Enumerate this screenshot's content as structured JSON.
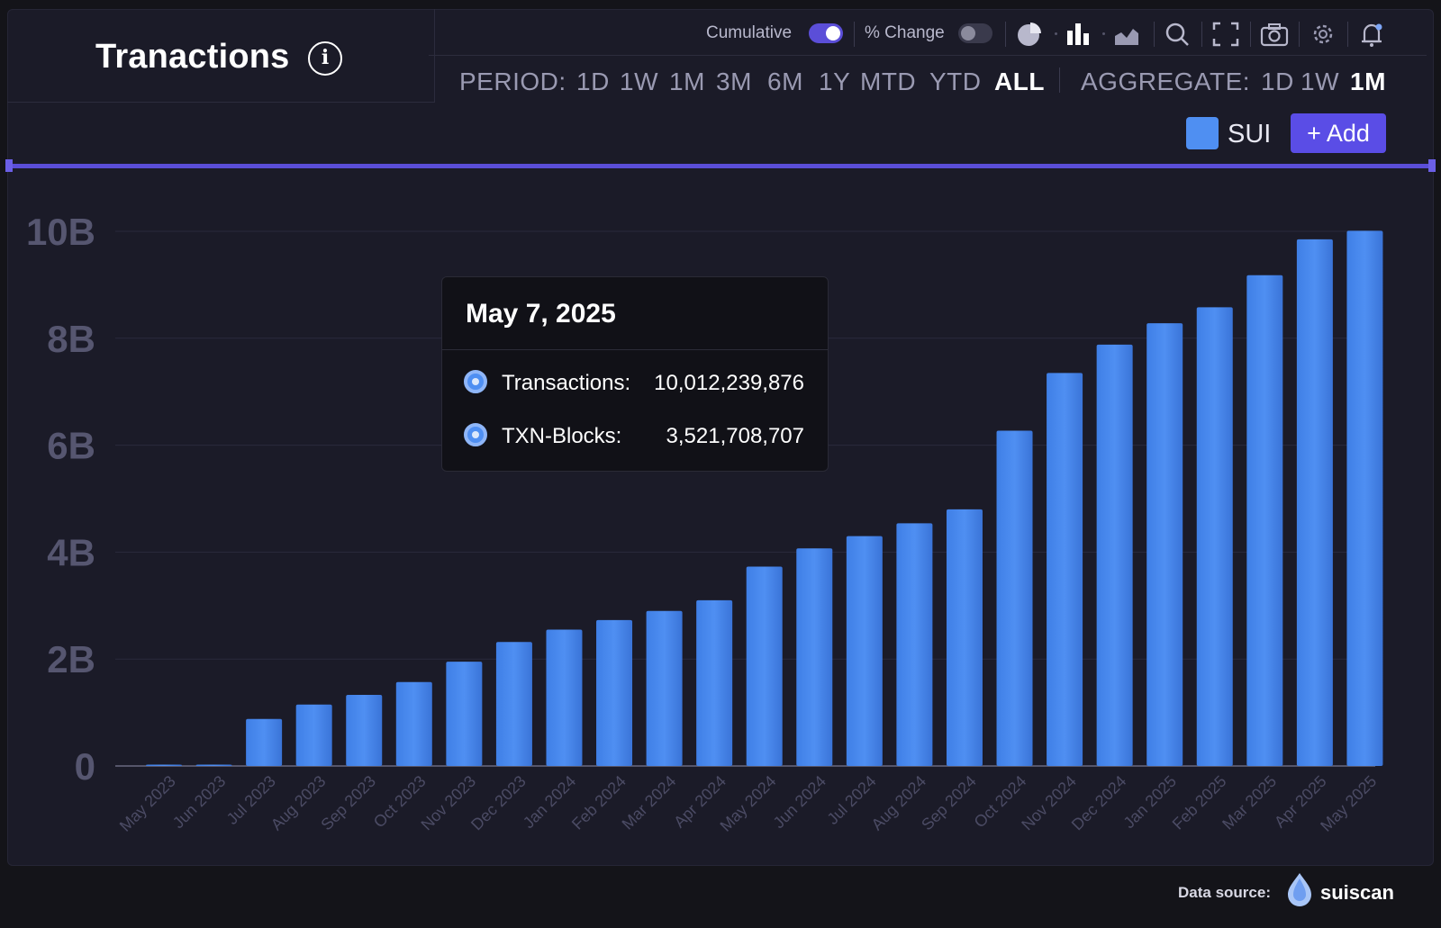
{
  "header": {
    "title": "Tranactions",
    "info_icon": "info-icon"
  },
  "toolbar": {
    "cumulative_label": "Cumulative",
    "cumulative_on": true,
    "pct_change_label": "% Change",
    "pct_change_on": false,
    "icons": [
      "pie-chart-icon",
      "bar-chart-icon",
      "area-chart-icon",
      "search-icon",
      "fullscreen-icon",
      "camera-icon",
      "gear-icon",
      "bell-icon"
    ]
  },
  "period": {
    "label": "PERIOD:",
    "options": [
      "1D",
      "1W",
      "1M",
      "3M",
      "6M",
      "1Y",
      "MTD",
      "YTD",
      "ALL"
    ],
    "selected": "ALL"
  },
  "aggregate": {
    "label": "AGGREGATE:",
    "options": [
      "1D",
      "1W",
      "1M"
    ],
    "selected": "1M"
  },
  "legend": {
    "label": "SUI",
    "color": "#4f8ff2",
    "add_label": "+ Add"
  },
  "tooltip": {
    "date": "May 7, 2025",
    "rows": [
      {
        "label": "Transactions:",
        "value": "10,012,239,876"
      },
      {
        "label": "TXN-Blocks:",
        "value": "3,521,708,707"
      }
    ]
  },
  "footer": {
    "datasource_label": "Data source:",
    "source_name": "suiscan"
  },
  "chart_data": {
    "type": "bar",
    "categories": [
      "May 2023",
      "Jun 2023",
      "Jul 2023",
      "Aug 2023",
      "Sep 2023",
      "Oct 2023",
      "Nov 2023",
      "Dec 2023",
      "Jan 2024",
      "Feb 2024",
      "Mar 2024",
      "Apr 2024",
      "May 2024",
      "Jun 2024",
      "Jul 2024",
      "Aug 2024",
      "Sep 2024",
      "Oct 2024",
      "Nov 2024",
      "Dec 2024",
      "Jan 2025",
      "Feb 2025",
      "Mar 2025",
      "Apr 2025",
      "May 2025"
    ],
    "values": [
      0.005,
      0.02,
      0.88,
      1.15,
      1.33,
      1.57,
      1.95,
      2.32,
      2.55,
      2.73,
      2.9,
      3.1,
      3.73,
      4.07,
      4.3,
      4.54,
      4.8,
      6.27,
      7.35,
      7.88,
      8.28,
      8.58,
      9.18,
      9.85,
      10.01
    ],
    "unit": "B",
    "series": [
      {
        "name": "SUI",
        "values": [
          0.005,
          0.02,
          0.88,
          1.15,
          1.33,
          1.57,
          1.95,
          2.32,
          2.55,
          2.73,
          2.9,
          3.1,
          3.73,
          4.07,
          4.3,
          4.54,
          4.8,
          6.27,
          7.35,
          7.88,
          8.28,
          8.58,
          9.18,
          9.85,
          10.01
        ]
      }
    ],
    "y_ticks": [
      "0",
      "2B",
      "4B",
      "6B",
      "8B",
      "10B"
    ],
    "y_tick_values": [
      0,
      2,
      4,
      6,
      8,
      10
    ],
    "ylim": [
      0,
      10
    ],
    "grid": true,
    "bar_color": "#4f8ff2"
  }
}
